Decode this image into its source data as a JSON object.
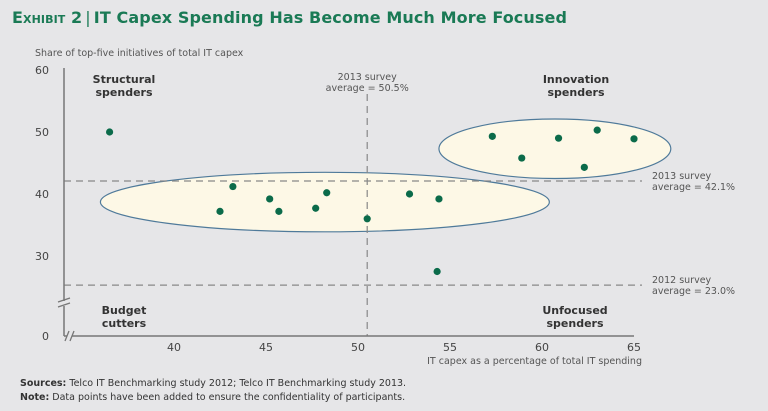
{
  "header": {
    "exhibit": "Exhibit 2",
    "separator": "|",
    "title": "IT Capex Spending Has Become Much More Focused"
  },
  "footer": {
    "sources_label": "Sources:",
    "sources_text": "Telco IT Benchmarking study 2012; Telco IT Benchmarking study 2013.",
    "note_label": "Note:",
    "note_text": "Data points have been added to ensure the confidentiality of participants."
  },
  "colors": {
    "title": "#1a7a55",
    "point": "#0b6b4a",
    "ellipse_fill": "#fdf8e6",
    "ellipse_stroke": "#4f7a9a",
    "axis": "#777777",
    "reference_line": "#888888",
    "background": "#e6e6e8"
  },
  "chart_data": {
    "type": "scatter",
    "title": "IT Capex Spending Has Become Much More Focused",
    "xlabel": "IT capex as a percentage of total IT spending",
    "ylabel": "Share of top-five initiatives of total IT capex",
    "xlim": [
      36,
      65
    ],
    "ylim": [
      0,
      60
    ],
    "axis_break": {
      "x": true,
      "y": true,
      "y_break_below": 25
    },
    "x_ticks": [
      40,
      45,
      50,
      55,
      60,
      65
    ],
    "y_ticks": [
      0,
      30,
      40,
      50,
      60
    ],
    "grid": false,
    "points": [
      {
        "x": 36.5,
        "y": 50.0
      },
      {
        "x": 42.5,
        "y": 37.2
      },
      {
        "x": 43.2,
        "y": 41.2
      },
      {
        "x": 45.2,
        "y": 39.2
      },
      {
        "x": 45.7,
        "y": 37.2
      },
      {
        "x": 47.7,
        "y": 37.7
      },
      {
        "x": 48.3,
        "y": 40.2
      },
      {
        "x": 50.5,
        "y": 36.0
      },
      {
        "x": 52.8,
        "y": 40.0
      },
      {
        "x": 54.4,
        "y": 39.2
      },
      {
        "x": 54.3,
        "y": 27.5
      },
      {
        "x": 57.3,
        "y": 49.3
      },
      {
        "x": 58.9,
        "y": 45.8
      },
      {
        "x": 60.9,
        "y": 49.0
      },
      {
        "x": 62.3,
        "y": 44.3
      },
      {
        "x": 63.0,
        "y": 50.3
      },
      {
        "x": 65.0,
        "y": 48.9
      }
    ],
    "reference_lines": [
      {
        "orientation": "vertical",
        "value": 50.5,
        "label_line1": "2013 survey",
        "label_line2": "average = 50.5%"
      },
      {
        "orientation": "horizontal",
        "value": 42.1,
        "label_line1": "2013 survey",
        "label_line2": "average = 42.1%"
      },
      {
        "orientation": "horizontal",
        "value": 25.3,
        "label_line1": "2012 survey",
        "label_line2": "average = 23.0%"
      }
    ],
    "clusters": [
      {
        "name": "center-cluster",
        "cx": 48.2,
        "cy": 38.7,
        "rx": 12.2,
        "ry": 4.8
      },
      {
        "name": "innovation-cluster",
        "cx": 60.7,
        "cy": 47.3,
        "rx": 6.3,
        "ry": 4.8
      }
    ],
    "quadrant_labels": [
      {
        "name": "structural-spenders",
        "line1": "Structural",
        "line2": "spenders",
        "position": "top-left"
      },
      {
        "name": "innovation-spenders",
        "line1": "Innovation",
        "line2": "spenders",
        "position": "top-right"
      },
      {
        "name": "budget-cutters",
        "line1": "Budget",
        "line2": "cutters",
        "position": "bottom-left"
      },
      {
        "name": "unfocused-spenders",
        "line1": "Unfocused",
        "line2": "spenders",
        "position": "bottom-right"
      }
    ]
  }
}
